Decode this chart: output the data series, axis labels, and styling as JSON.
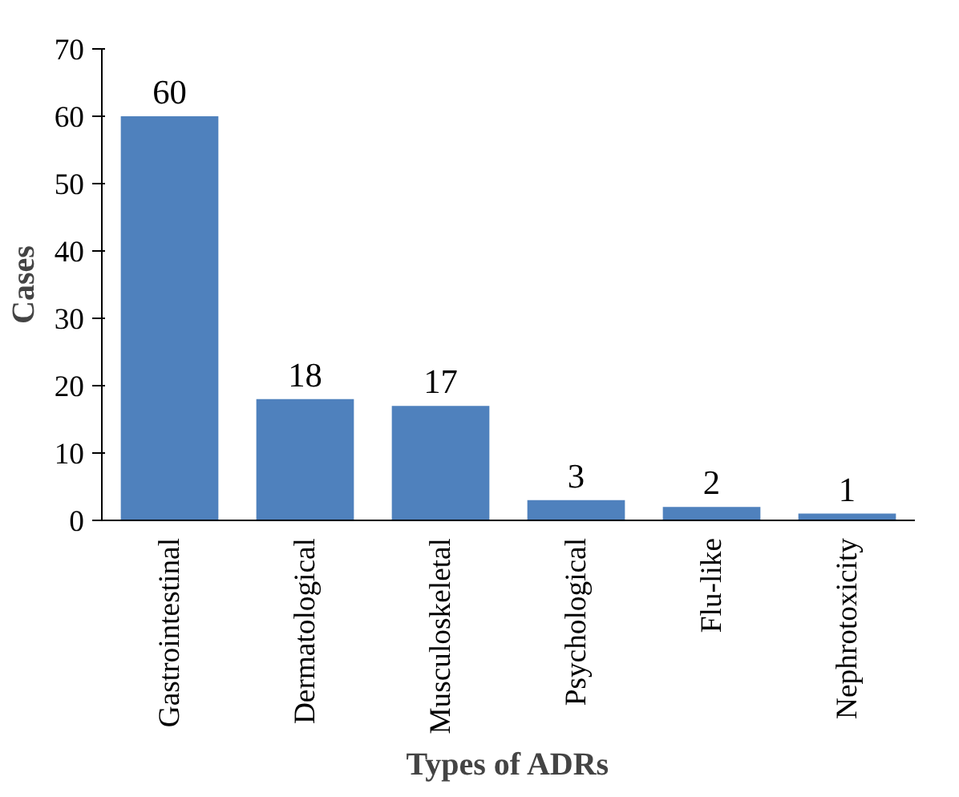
{
  "chart_data": {
    "type": "bar",
    "xlabel": "Types of ADRs",
    "ylabel": "Cases",
    "categories": [
      "Gastrointestinal",
      "Dermatological",
      "Musculoskeletal",
      "Psychological",
      "Flu-like",
      "Nephrotoxicity"
    ],
    "values": [
      60,
      18,
      17,
      3,
      2,
      1
    ],
    "color": "#4f81bd",
    "ylim": [
      0,
      70
    ],
    "yticks": [
      0,
      10,
      20,
      30,
      40,
      50,
      60,
      70
    ],
    "grid": false,
    "data_labels": true
  }
}
